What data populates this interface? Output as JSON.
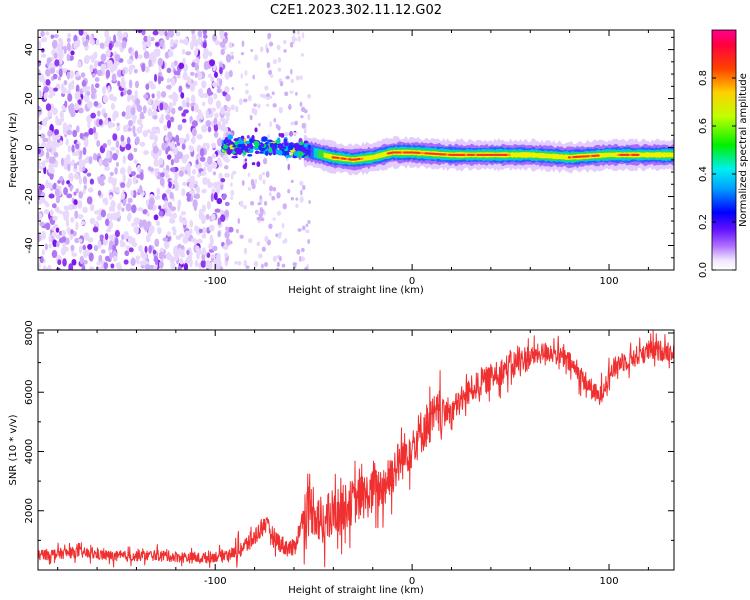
{
  "figure": {
    "title": "C2E1.2023.302.11.12.G02"
  },
  "chart_data": [
    {
      "type": "heatmap",
      "xlabel": "Height of straight line (km)",
      "ylabel": "Frequency (Hz)",
      "xlim": [
        -190,
        133
      ],
      "ylim": [
        -50,
        48
      ],
      "xticks": [
        -100,
        0,
        100
      ],
      "yticks": [
        -40,
        -20,
        0,
        20,
        40
      ],
      "colorbar": {
        "label": "Normalized spectral amplitude",
        "range": [
          0,
          1
        ],
        "ticks": [
          0.0,
          0.2,
          0.4,
          0.6,
          0.8
        ],
        "colormap": [
          "#ffffff",
          "#d8b8f8",
          "#9030ff",
          "#2000ff",
          "#00c8ff",
          "#00e840",
          "#f0f000",
          "#ff4000",
          "#ff0060"
        ]
      },
      "ridge_frequency_hz": [
        {
          "x": -95,
          "y": 0
        },
        {
          "x": -80,
          "y": 1
        },
        {
          "x": -65,
          "y": 0
        },
        {
          "x": -50,
          "y": -2
        },
        {
          "x": -40,
          "y": -4
        },
        {
          "x": -30,
          "y": -5
        },
        {
          "x": -20,
          "y": -4
        },
        {
          "x": -10,
          "y": -2
        },
        {
          "x": 0,
          "y": -2
        },
        {
          "x": 20,
          "y": -3
        },
        {
          "x": 40,
          "y": -3
        },
        {
          "x": 60,
          "y": -3
        },
        {
          "x": 80,
          "y": -4
        },
        {
          "x": 100,
          "y": -3
        },
        {
          "x": 133,
          "y": -3
        }
      ]
    },
    {
      "type": "line",
      "xlabel": "Height of straight line (km)",
      "ylabel": "SNR (10 * v/v)",
      "xlim": [
        -190,
        133
      ],
      "ylim": [
        0,
        8100
      ],
      "xticks": [
        -100,
        0,
        100
      ],
      "yticks": [
        2000,
        4000,
        6000,
        8000
      ],
      "series": [
        {
          "color": "#f03030",
          "x": [
            -190,
            -170,
            -150,
            -130,
            -110,
            -100,
            -90,
            -85,
            -80,
            -75,
            -70,
            -65,
            -60,
            -55,
            -50,
            -45,
            -40,
            -30,
            -20,
            -15,
            -10,
            -5,
            0,
            5,
            10,
            15,
            20,
            25,
            30,
            35,
            40,
            50,
            60,
            70,
            80,
            85,
            90,
            95,
            100,
            105,
            110,
            120,
            133
          ],
          "y": [
            500,
            600,
            450,
            500,
            400,
            450,
            600,
            800,
            1100,
            1600,
            1100,
            800,
            700,
            1900,
            2100,
            1500,
            1900,
            2300,
            2600,
            2800,
            3300,
            3800,
            4200,
            4700,
            5100,
            5300,
            5400,
            5700,
            6100,
            6300,
            6500,
            6900,
            7200,
            7400,
            7000,
            6600,
            6200,
            5800,
            6600,
            7000,
            7100,
            7400,
            7400
          ]
        }
      ]
    }
  ]
}
